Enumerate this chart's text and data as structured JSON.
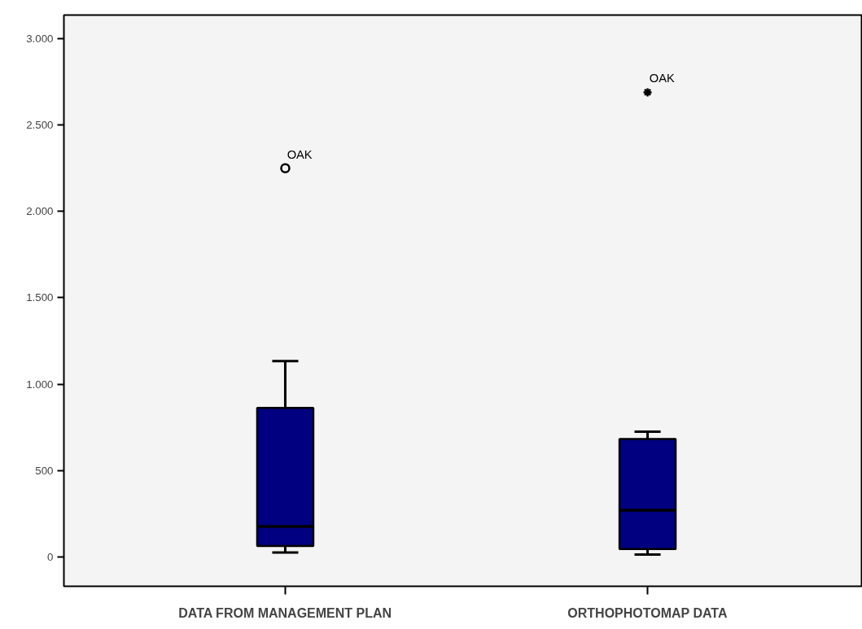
{
  "chart_data": {
    "type": "box",
    "categories": [
      "DATA FROM MANAGEMENT PLAN",
      "ORTHOPHOTOMAP DATA"
    ],
    "series": [
      {
        "color": "#000080",
        "marker": "circle",
        "boxes": [
          {
            "low": 25,
            "q1": 63,
            "median": 176,
            "q3": 863,
            "high": 1134,
            "outliers": [
              2250
            ]
          },
          null
        ]
      },
      {
        "color": "#000080",
        "marker": "star",
        "boxes": [
          null,
          {
            "low": 14,
            "q1": 46,
            "median": 270,
            "q3": 683,
            "high": 725,
            "outliers": [
              2690
            ]
          }
        ]
      }
    ],
    "ylim": [
      -170,
      3137
    ],
    "yticks": [
      {
        "value": 0,
        "label": "0"
      },
      {
        "value": 500,
        "label": "500"
      },
      {
        "value": 1000,
        "label": "1.000"
      },
      {
        "value": 1500,
        "label": "1.500"
      },
      {
        "value": 2000,
        "label": "2.000"
      },
      {
        "value": 2500,
        "label": "2.500"
      },
      {
        "value": 3000,
        "label": "3.000"
      }
    ],
    "grid": false,
    "annotations": [
      "OAK",
      "OAK"
    ]
  }
}
